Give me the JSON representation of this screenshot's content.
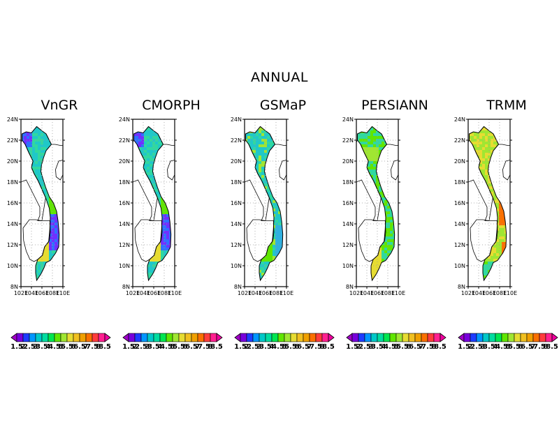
{
  "title": "ANNUAL",
  "panels": [
    {
      "name": "VnGR"
    },
    {
      "name": "CMORPH"
    },
    {
      "name": "GSMaP"
    },
    {
      "name": "PERSIANN"
    },
    {
      "name": "TRMM"
    }
  ],
  "axes": {
    "lat_ticks": [
      "24N",
      "22N",
      "20N",
      "18N",
      "16N",
      "14N",
      "12N",
      "10N",
      "8N"
    ],
    "lon_ticks": [
      "102E",
      "104E",
      "106E",
      "108E",
      "110E"
    ],
    "lat_range": [
      8,
      24
    ],
    "lon_range": [
      102,
      110
    ]
  },
  "colorbar": {
    "labels": [
      "1.5",
      "2",
      "2.5",
      "3",
      "3.5",
      "4",
      "4.5",
      "5",
      "5.5",
      "6",
      "6.5",
      "7",
      "7.5",
      "8",
      "8.5"
    ],
    "colors": [
      "#a000c8",
      "#7800dc",
      "#1e3cff",
      "#0096ff",
      "#00c8c8",
      "#00dca0",
      "#00e650",
      "#60e600",
      "#a0e632",
      "#e6dc32",
      "#f0c020",
      "#f0a000",
      "#fa7000",
      "#ff3c3c",
      "#ff2090",
      "#f000a0"
    ]
  },
  "style": {
    "map_fill_default": "#30d0a0",
    "panel_palettes": [
      [
        "#20c8c8",
        "#30d8a0",
        "#3070ff",
        "#7030ff",
        "#e6dc32",
        "#60e600"
      ],
      [
        "#20c8c8",
        "#30d8a0",
        "#3070ff",
        "#7030ff",
        "#e6dc32",
        "#60e600"
      ],
      [
        "#20c8c8",
        "#30d8a0",
        "#30b0e0",
        "#60e600",
        "#a0e632"
      ],
      [
        "#30d8a0",
        "#60e600",
        "#a0e632",
        "#e6dc32",
        "#00c8c8"
      ],
      [
        "#a0e632",
        "#e6dc32",
        "#30d8a0",
        "#fa7000",
        "#60e600"
      ]
    ]
  }
}
